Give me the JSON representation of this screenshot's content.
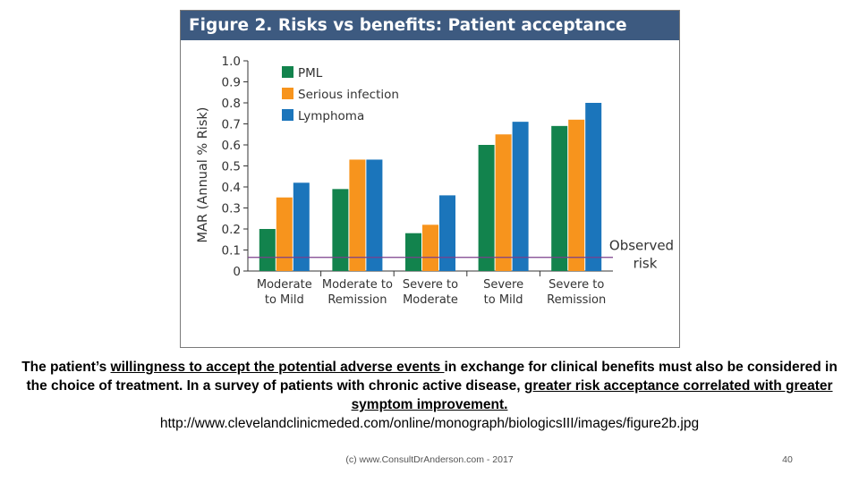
{
  "figure": {
    "title": "Figure 2. Risks vs benefits: Patient acceptance"
  },
  "colors": {
    "header_bg": "#3d5a80",
    "pml": "#12834d",
    "serious_infection": "#f7941d",
    "lymphoma": "#1b75bb",
    "observed_line": "#7b3f8c"
  },
  "chart_data": {
    "type": "bar",
    "title": "Figure 2. Risks vs benefits: Patient acceptance",
    "ylabel": "MAR (Annual % Risk)",
    "xlabel": "",
    "ylim": [
      0,
      1.0
    ],
    "yticks": [
      "0",
      "0.1",
      "0.2",
      "0.3",
      "0.4",
      "0.5",
      "0.6",
      "0.7",
      "0.8",
      "0.9",
      "1.0"
    ],
    "categories": [
      {
        "line1": "Moderate",
        "line2": "to Mild"
      },
      {
        "line1": "Moderate to",
        "line2": "Remission"
      },
      {
        "line1": "Severe to",
        "line2": "Moderate"
      },
      {
        "line1": "Severe",
        "line2": "to Mild"
      },
      {
        "line1": "Severe to",
        "line2": "Remission"
      }
    ],
    "series": [
      {
        "name": "PML",
        "color": "#12834d",
        "values": [
          0.2,
          0.39,
          0.18,
          0.6,
          0.69
        ]
      },
      {
        "name": "Serious infection",
        "color": "#f7941d",
        "values": [
          0.35,
          0.53,
          0.22,
          0.65,
          0.72
        ]
      },
      {
        "name": "Lymphoma",
        "color": "#1b75bb",
        "values": [
          0.42,
          0.53,
          0.36,
          0.71,
          0.8
        ]
      }
    ],
    "observed_risk": {
      "value": 0.065,
      "label_line1": "Observed",
      "label_line2": "risk"
    },
    "legend_position": "top-left",
    "grid": false
  },
  "caption": {
    "part1": "The patient’s ",
    "part2_underlined": "willingness to accept the potential adverse events ",
    "part3": "in exchange for clinical benefits must also be considered in the choice of treatment. In a survey of patients with chronic active disease, ",
    "part4_underlined": "greater risk acceptance correlated with greater symptom improvement.",
    "url": "http://www.clevelandclinicmeded.com/online/monograph/biologicsIII/images/figure2b.jpg"
  },
  "footer": {
    "text": "(c) www.ConsultDrAnderson.com - 2017",
    "page_number": "40"
  }
}
